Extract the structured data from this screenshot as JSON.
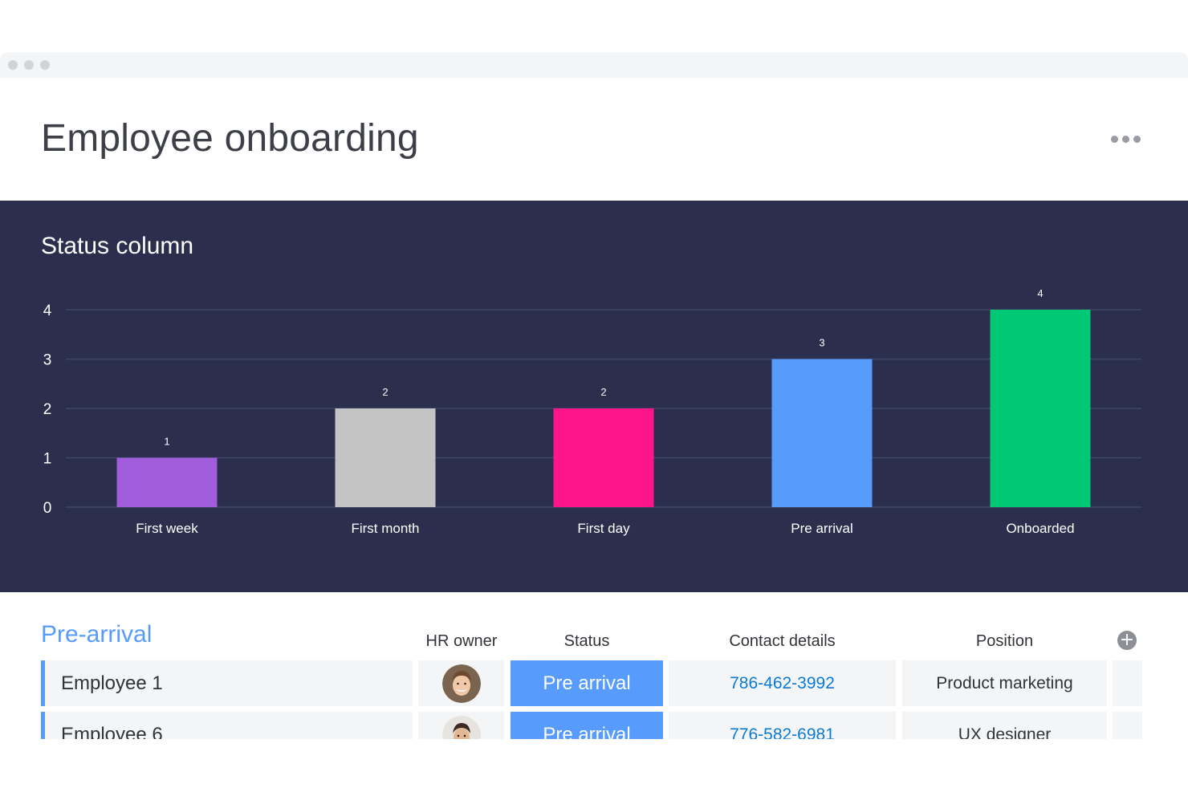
{
  "page": {
    "title": "Employee onboarding"
  },
  "chart_panel": {
    "title": "Status column"
  },
  "chart_data": {
    "type": "bar",
    "categories": [
      "First week",
      "First month",
      "First day",
      "Pre arrival",
      "Onboarded"
    ],
    "values": [
      1,
      2,
      2,
      3,
      4
    ],
    "colors": [
      "#a25ddc",
      "#c4c4c4",
      "#ff158a",
      "#579bfc",
      "#00c875"
    ],
    "yticks": [
      0,
      1,
      2,
      3,
      4
    ],
    "ylim": [
      0,
      4
    ],
    "grid": true,
    "legend": "none",
    "title": "Status column",
    "xlabel": "",
    "ylabel": ""
  },
  "table": {
    "group_title": "Pre-arrival",
    "columns": {
      "hr_owner": "HR owner",
      "status": "Status",
      "contact": "Contact details",
      "position": "Position"
    },
    "add_column_icon": "plus-circle-icon",
    "rows": [
      {
        "name": "Employee 1",
        "status": "Pre arrival",
        "contact": "786-462-3992",
        "position": "Product marketing",
        "status_color": "#579bfc"
      },
      {
        "name": "Employee 6",
        "status": "Pre arrival",
        "contact": "776-582-6981",
        "position": "UX designer",
        "status_color": "#579bfc"
      }
    ]
  }
}
